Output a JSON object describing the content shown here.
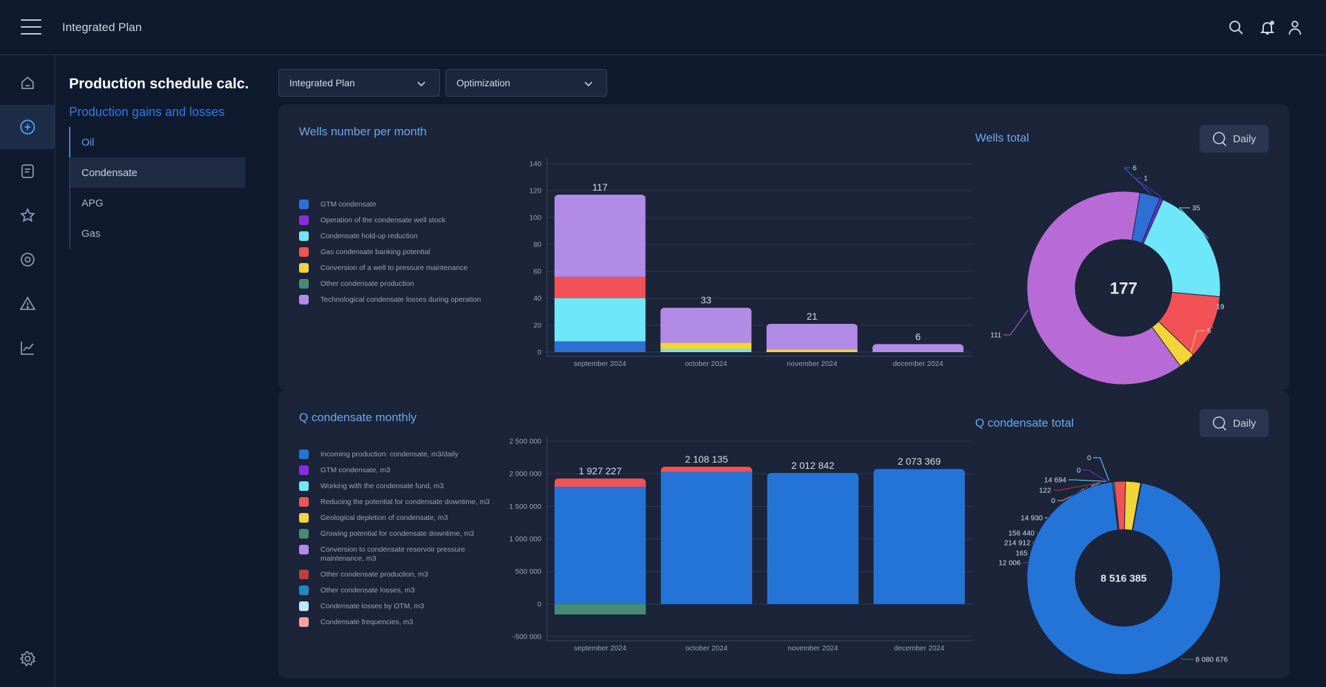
{
  "app": {
    "title": "Integrated Plan"
  },
  "sidebar": {
    "title": "Production schedule calc.",
    "subtitle": "Production gains and losses",
    "items": [
      {
        "label": "Oil"
      },
      {
        "label": "Condensate"
      },
      {
        "label": "APG"
      },
      {
        "label": "Gas"
      }
    ]
  },
  "filters": {
    "plan": "Integrated Plan",
    "mode": "Optimization"
  },
  "wells_panel": {
    "title": "Wells number per month",
    "total_title": "Wells total",
    "daily_label": "Daily",
    "total_value": "177"
  },
  "q_panel": {
    "title": "Q condensate monthly",
    "total_title": "Q condensate total",
    "daily_label": "Daily",
    "total_value": "8 516 385"
  },
  "chart_data": [
    {
      "id": "wells-monthly",
      "type": "bar",
      "stacked": true,
      "title": "Wells number per month",
      "categories": [
        "september 2024",
        "october 2024",
        "november 2024",
        "december 2024"
      ],
      "totals": [
        "117",
        "33",
        "21",
        "6"
      ],
      "ylim": [
        0,
        140
      ],
      "yticks": [
        "0",
        "20",
        "40",
        "60",
        "80",
        "100",
        "120",
        "140"
      ],
      "grid": true,
      "series": [
        {
          "name": "GTM condensate",
          "color": "#2e6fd6",
          "values": [
            8,
            0,
            0,
            0
          ]
        },
        {
          "name": "Operation of the condensate well stock",
          "color": "#8a2be2",
          "values": [
            0,
            0,
            0,
            0
          ]
        },
        {
          "name": "Condensate hold-up reduction",
          "color": "#6fe7fb",
          "values": [
            32,
            2,
            0,
            0
          ]
        },
        {
          "name": "Gas condensate banking potential",
          "color": "#f25256",
          "values": [
            16,
            0,
            0,
            0
          ]
        },
        {
          "name": "Conversion of a well to pressure maintenance",
          "color": "#f2d43b",
          "values": [
            0,
            5,
            2,
            0
          ]
        },
        {
          "name": "Other condensate production",
          "color": "#4a8a75",
          "values": [
            0,
            0,
            0,
            0
          ]
        },
        {
          "name": "Technological condensate losses during operation",
          "color": "#b28be6",
          "values": [
            61,
            26,
            19,
            6
          ]
        }
      ]
    },
    {
      "id": "wells-total",
      "type": "pie",
      "donut": true,
      "title": "Wells total",
      "center_label": "177",
      "slices": [
        {
          "label": "6",
          "value": 6,
          "color": "#2e6fd6"
        },
        {
          "label": "1",
          "value": 1,
          "color": "#6a2bd8"
        },
        {
          "label": "35",
          "value": 35,
          "color": "#6fe7fb"
        },
        {
          "label": "19",
          "value": 19,
          "color": "#f25256"
        },
        {
          "label": "5",
          "value": 5,
          "color": "#f2d43b"
        },
        {
          "label": "111",
          "value": 111,
          "color": "#b86bd6"
        }
      ]
    },
    {
      "id": "q-monthly",
      "type": "bar",
      "stacked": true,
      "title": "Q condensate monthly",
      "categories": [
        "september 2024",
        "october 2024",
        "november 2024",
        "december 2024"
      ],
      "totals": [
        "1 927 227",
        "2 108 135",
        "2 012 842",
        "2 073 369"
      ],
      "ylim": [
        -500000,
        2500000
      ],
      "yticks": [
        "-500 000",
        "0",
        "500 000",
        "1 000 000",
        "1 500 000",
        "2 000 000",
        "2 500 000"
      ],
      "grid": true,
      "series": [
        {
          "name": "Incoming production: condensate, m3/daily",
          "color": "#2474d8",
          "values": [
            1800000,
            2030000,
            2012842,
            2073369
          ]
        },
        {
          "name": "GTM condensate, m3",
          "color": "#8a2be2",
          "values": [
            0,
            0,
            0,
            0
          ]
        },
        {
          "name": "Working with the condensate fund, m3",
          "color": "#6fe7fb",
          "values": [
            0,
            0,
            0,
            0
          ]
        },
        {
          "name": "Reducing the potential for condensate downtime, m3",
          "color": "#f25256",
          "values": [
            127227,
            78135,
            0,
            0
          ]
        },
        {
          "name": "Geological depletion of condensate, m3",
          "color": "#f2d43b",
          "values": [
            0,
            0,
            0,
            0
          ]
        },
        {
          "name": "Growing potential for condensate downtime, m3",
          "color": "#4a8a75",
          "values": [
            -160000,
            0,
            0,
            0
          ]
        },
        {
          "name": "Conversion to condensate reservoir pressure maintenance, m3",
          "color": "#b28be6",
          "values": [
            0,
            0,
            0,
            0
          ]
        },
        {
          "name": "Other condensate production, m3",
          "color": "#c63a3a",
          "values": [
            0,
            0,
            0,
            0
          ]
        },
        {
          "name": "Other condensate losses, m3",
          "color": "#1d8ac4",
          "values": [
            0,
            0,
            0,
            0
          ]
        },
        {
          "name": "Condensate losses by OTM, m3",
          "color": "#bfe8ff",
          "values": [
            0,
            0,
            0,
            0
          ]
        },
        {
          "name": "Condensate frequencies, m3",
          "color": "#f4a3a3",
          "values": [
            0,
            0,
            0,
            0
          ]
        }
      ]
    },
    {
      "id": "q-total",
      "type": "pie",
      "donut": true,
      "title": "Q condensate total",
      "center_label": "8 516 385",
      "slices": [
        {
          "label": "0",
          "value": 0,
          "color": "#6fe7fb"
        },
        {
          "label": "0",
          "value": 0,
          "color": "#8a2be2"
        },
        {
          "label": "14 694",
          "value": 14694,
          "color": "#6fe7fb"
        },
        {
          "label": "122",
          "value": 122,
          "color": "#c63a3a"
        },
        {
          "label": "0",
          "value": 0,
          "color": "#f4a3a3"
        },
        {
          "label": "14 930",
          "value": 14930,
          "color": "#bfe8ff"
        },
        {
          "label": "156 440",
          "value": 156440,
          "color": "#f25256"
        },
        {
          "label": "214 912",
          "value": 214912,
          "color": "#f2d43b"
        },
        {
          "label": "165",
          "value": 165,
          "color": "#4a8a75"
        },
        {
          "label": "12 006",
          "value": 12006,
          "color": "#8a2be2"
        },
        {
          "label": "8 080 676",
          "value": 8080676,
          "color": "#2474d8"
        }
      ]
    }
  ]
}
